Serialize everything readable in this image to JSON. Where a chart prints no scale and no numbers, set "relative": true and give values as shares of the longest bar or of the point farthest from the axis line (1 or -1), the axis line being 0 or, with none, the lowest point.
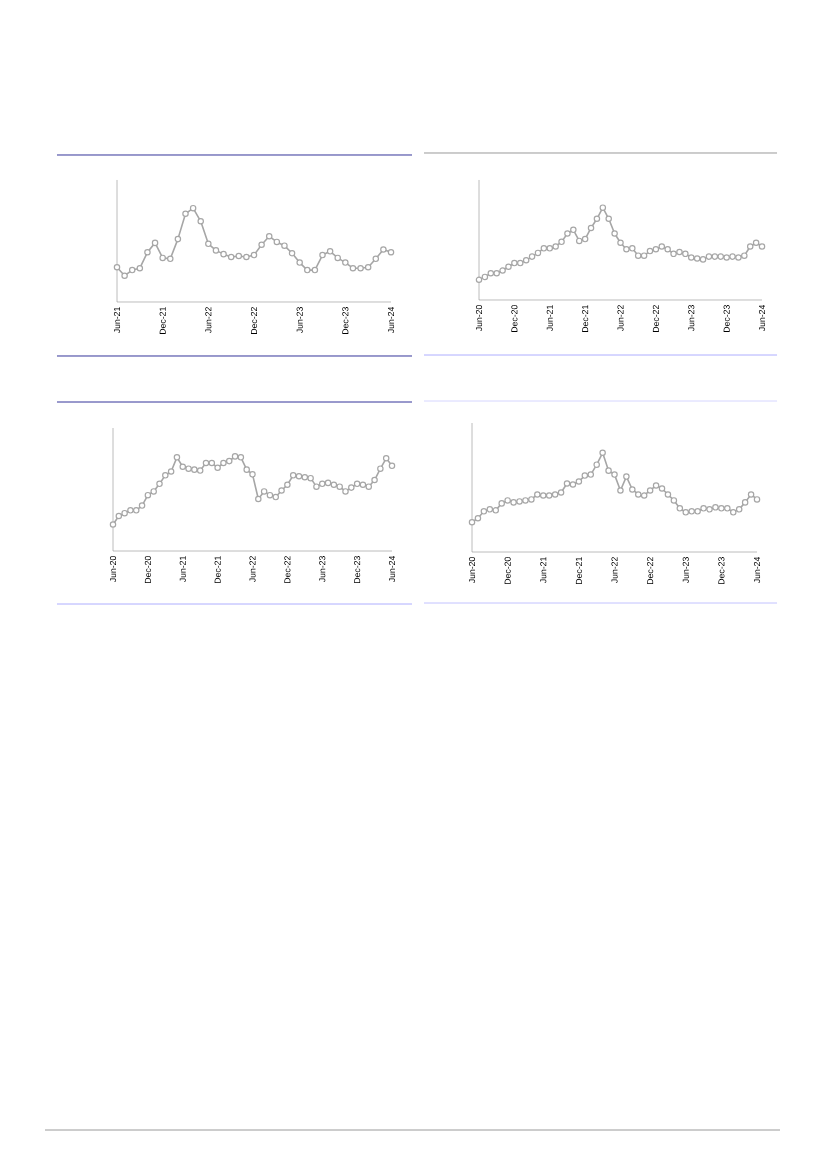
{
  "chart_data": [
    {
      "type": "line",
      "relative": true,
      "marker": "circle",
      "tick_labels": "x",
      "line_style": "solid",
      "categories": [
        "Jun-21",
        null,
        null,
        null,
        null,
        null,
        "Dec-21",
        null,
        null,
        null,
        null,
        null,
        "Jun-22",
        null,
        null,
        null,
        null,
        null,
        "Dec-22",
        null,
        null,
        null,
        null,
        null,
        "Jun-23",
        null,
        null,
        null,
        null,
        null,
        "Dec-23",
        null,
        null,
        null,
        null,
        null,
        "Jun-24"
      ],
      "series": [
        {
          "color": "#a6a6a6",
          "values": [
            0.37,
            0.28,
            0.34,
            0.36,
            0.53,
            0.63,
            0.47,
            0.46,
            0.67,
            0.94,
            1,
            0.86,
            0.62,
            0.55,
            0.51,
            0.48,
            0.49,
            0.48,
            0.5,
            0.61,
            0.7,
            0.64,
            0.6,
            0.52,
            0.42,
            0.34,
            0.34,
            0.5,
            0.54,
            0.47,
            0.42,
            0.36,
            0.36,
            0.37,
            0.46,
            0.56,
            0.53
          ]
        }
      ]
    },
    {
      "type": "line",
      "relative": true,
      "marker": "circle",
      "tick_labels": "x",
      "line_style": "solid",
      "categories": [
        "Jun-20",
        null,
        null,
        null,
        null,
        null,
        "Dec-20",
        null,
        null,
        null,
        null,
        null,
        "Jun-21",
        null,
        null,
        null,
        null,
        null,
        "Dec-21",
        null,
        null,
        null,
        null,
        null,
        "Jun-22",
        null,
        null,
        null,
        null,
        null,
        "Dec-22",
        null,
        null,
        null,
        null,
        null,
        "Jun-23",
        null,
        null,
        null,
        null,
        null,
        "Dec-23",
        null,
        null,
        null,
        null,
        null,
        "Jun-24"
      ],
      "series": [
        {
          "color": "#a6a6a6",
          "values": [
            0.22,
            0.25,
            0.29,
            0.29,
            0.32,
            0.36,
            0.4,
            0.4,
            0.43,
            0.47,
            0.51,
            0.56,
            0.56,
            0.58,
            0.63,
            0.72,
            0.76,
            0.64,
            0.66,
            0.78,
            0.88,
            1,
            0.88,
            0.72,
            0.62,
            0.55,
            0.56,
            0.48,
            0.48,
            0.53,
            0.55,
            0.58,
            0.55,
            0.5,
            0.52,
            0.5,
            0.46,
            0.45,
            0.44,
            0.47,
            0.47,
            0.47,
            0.46,
            0.47,
            0.46,
            0.48,
            0.58,
            0.62,
            0.58
          ]
        }
      ]
    },
    {
      "type": "line",
      "relative": true,
      "marker": "circle",
      "tick_labels": "x",
      "line_style": "solid",
      "categories": [
        "Jun-20",
        null,
        null,
        null,
        null,
        null,
        "Dec-20",
        null,
        null,
        null,
        null,
        null,
        "Jun-21",
        null,
        null,
        null,
        null,
        null,
        "Dec-21",
        null,
        null,
        null,
        null,
        null,
        "Jun-22",
        null,
        null,
        null,
        null,
        null,
        "Dec-22",
        null,
        null,
        null,
        null,
        null,
        "Jun-23",
        null,
        null,
        null,
        null,
        null,
        "Dec-23",
        null,
        null,
        null,
        null,
        null,
        "Jun-24"
      ],
      "series": [
        {
          "color": "#a6a6a6",
          "values": [
            0.28,
            0.37,
            0.4,
            0.43,
            0.43,
            0.48,
            0.59,
            0.63,
            0.71,
            0.8,
            0.84,
            0.99,
            0.89,
            0.87,
            0.86,
            0.85,
            0.93,
            0.93,
            0.88,
            0.93,
            0.95,
            1,
            0.99,
            0.86,
            0.81,
            0.55,
            0.63,
            0.59,
            0.57,
            0.64,
            0.7,
            0.8,
            0.79,
            0.78,
            0.77,
            0.68,
            0.71,
            0.72,
            0.7,
            0.68,
            0.63,
            0.67,
            0.71,
            0.7,
            0.68,
            0.75,
            0.87,
            0.98,
            0.9
          ]
        }
      ]
    },
    {
      "type": "line",
      "relative": true,
      "marker": "circle",
      "tick_labels": "x",
      "line_style": "solid",
      "categories": [
        "Jun-20",
        null,
        null,
        null,
        null,
        null,
        "Dec-20",
        null,
        null,
        null,
        null,
        null,
        "Jun-21",
        null,
        null,
        null,
        null,
        null,
        "Dec-21",
        null,
        null,
        null,
        null,
        null,
        "Jun-22",
        null,
        null,
        null,
        null,
        null,
        "Dec-22",
        null,
        null,
        null,
        null,
        null,
        "Jun-23",
        null,
        null,
        null,
        null,
        null,
        "Dec-23",
        null,
        null,
        null,
        null,
        null,
        "Jun-24"
      ],
      "series": [
        {
          "color": "#a6a6a6",
          "values": [
            0.3,
            0.34,
            0.41,
            0.43,
            0.42,
            0.49,
            0.52,
            0.5,
            0.51,
            0.52,
            0.53,
            0.58,
            0.57,
            0.57,
            0.58,
            0.6,
            0.69,
            0.68,
            0.71,
            0.77,
            0.78,
            0.88,
            1,
            0.82,
            0.78,
            0.62,
            0.76,
            0.63,
            0.58,
            0.57,
            0.62,
            0.67,
            0.64,
            0.58,
            0.52,
            0.44,
            0.4,
            0.41,
            0.41,
            0.44,
            0.43,
            0.45,
            0.44,
            0.44,
            0.4,
            0.43,
            0.5,
            0.58,
            0.53
          ]
        }
      ]
    }
  ]
}
